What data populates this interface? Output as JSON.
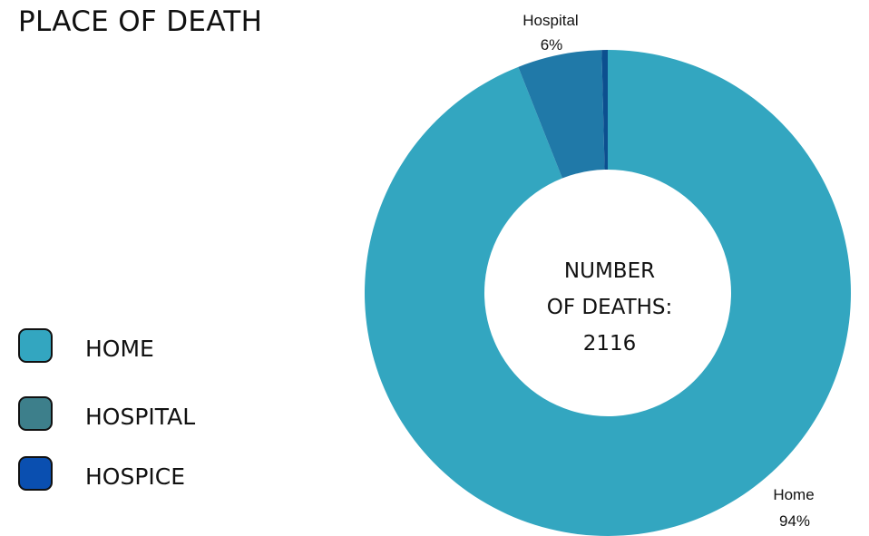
{
  "page": {
    "title": "PLACE OF DEATH"
  },
  "legend": {
    "items": [
      {
        "label": "HOME",
        "color": "#33a6c0"
      },
      {
        "label": "HOSPITAL",
        "color": "#3d7f8b"
      },
      {
        "label": "HOSPICE",
        "color": "#0a4fb0"
      }
    ]
  },
  "center": {
    "line1": "NUMBER",
    "line2": "OF DEATHS:",
    "line3": "2116"
  },
  "chart_data": {
    "type": "pie",
    "donut": true,
    "title": "PLACE OF DEATH",
    "total": 2116,
    "slices": [
      {
        "category": "Home",
        "percent": 94,
        "color": "#33a6c0",
        "label_name": "Home",
        "label_value": "94%"
      },
      {
        "category": "Hospital",
        "percent": 5.6,
        "color": "#2079a8",
        "label_name": "Hospital",
        "label_value": "6%"
      },
      {
        "category": "Hospice",
        "percent": 0.4,
        "color": "#0c4f8f",
        "label_name": "",
        "label_value": ""
      }
    ],
    "legend_position": "left"
  }
}
